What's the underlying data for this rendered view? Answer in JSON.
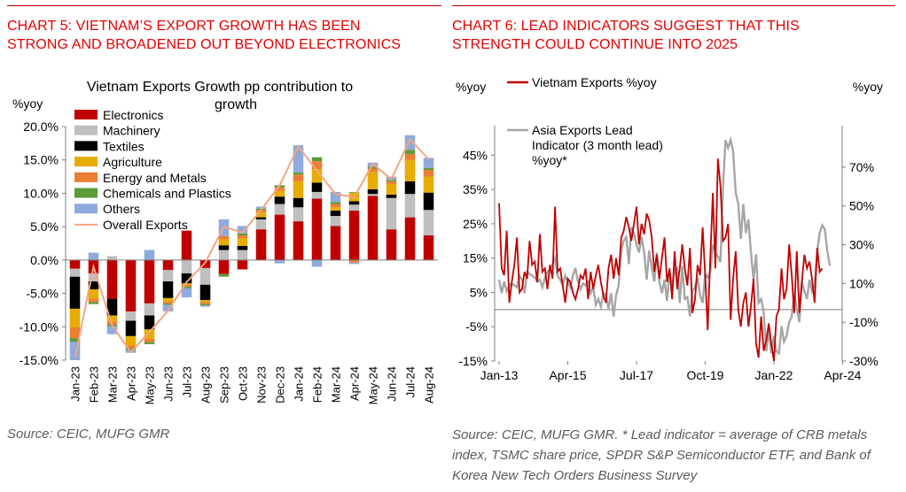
{
  "left": {
    "heading": "CHART 5: VIETNAM’S EXPORT GROWTH HAS BEEN\nSTRONG AND BROADENED OUT BEYOND ELECTRONICS",
    "source": "Source: CEIC, MUFG GMR"
  },
  "right": {
    "heading": "CHART 6: LEAD INDICATORS SUGGEST THAT THIS\nSTRENGTH COULD CONTINUE INTO 2025",
    "source": "Source: CEIC, MUFG GMR. * Lead indicator = average of CRB metals index, TSMC share price, SPDR S&P Semiconductor ETF, and Bank of Korea New Tech Orders Business Survey"
  },
  "colors": {
    "rule": "#c00000",
    "heading": "#e60000",
    "Electronics": "#c00000",
    "Machinery": "#bfbfbf",
    "Textiles": "#000000",
    "Agriculture": "#e6ac00",
    "Energy and Metals": "#ed7d31",
    "Chemicals and Plastics": "#5b9b3a",
    "Others": "#8faadc",
    "Overall Exports": "#f4a582",
    "Vietnam Exports": "#c00000",
    "Asia Lead": "#a6a6a6"
  },
  "chart_data": [
    {
      "type": "bar",
      "stacked": true,
      "title": "Vietnam Exports Growth pp contribution to growth",
      "ylabel": "%yoy",
      "ylim": [
        -15,
        20
      ],
      "yticks": [
        "-15.0%",
        "-10.0%",
        "-5.0%",
        "0.0%",
        "5.0%",
        "10.0%",
        "15.0%",
        "20.0%"
      ],
      "categories": [
        "Jan-23",
        "Feb-23",
        "Mar-23",
        "Apr-23",
        "May-23",
        "Jun-23",
        "Jul-23",
        "Aug-23",
        "Sep-23",
        "Oct-23",
        "Nov-23",
        "Dec-23",
        "Jan-24",
        "Feb-24",
        "Mar-24",
        "Apr-24",
        "May-24",
        "Jun-24",
        "Jul-24",
        "Aug-24"
      ],
      "legend_position": "top-left",
      "series": [
        {
          "name": "Electronics",
          "values": [
            -1.3,
            -2.0,
            -5.8,
            -7.7,
            -6.5,
            -1.5,
            4.4,
            -1.2,
            -2.1,
            -1.4,
            4.6,
            6.8,
            5.8,
            9.2,
            5.1,
            7.4,
            9.6,
            4.6,
            6.4,
            3.7
          ]
        },
        {
          "name": "Machinery",
          "values": [
            -1.2,
            -1.2,
            0.6,
            -1.4,
            -1.8,
            -1.7,
            -2.0,
            -2.5,
            1.5,
            1.5,
            1.5,
            1.6,
            2.1,
            1.0,
            1.5,
            0.9,
            0.3,
            4.7,
            3.5,
            3.8
          ]
        },
        {
          "name": "Textiles",
          "values": [
            -4.8,
            -1.2,
            -2.5,
            -2.3,
            -2.1,
            -2.5,
            -1.5,
            -2.3,
            0.7,
            0.6,
            0.3,
            1.1,
            1.4,
            1.4,
            0.8,
            0.5,
            0.7,
            0.5,
            1.9,
            2.6
          ]
        },
        {
          "name": "Agriculture",
          "values": [
            -2.8,
            -1.4,
            -0.9,
            -1.4,
            -1.4,
            -0.5,
            -0.2,
            -0.3,
            0.9,
            1.2,
            0.7,
            0.9,
            2.5,
            2.0,
            0.5,
            1.3,
            2.6,
            1.6,
            3.2,
            2.4
          ]
        },
        {
          "name": "Energy and Metals",
          "values": [
            -1.6,
            -0.5,
            -0.5,
            -0.4,
            -0.5,
            -0.3,
            -0.3,
            -0.3,
            0.5,
            0.4,
            0.4,
            0.5,
            1.0,
            1.2,
            0.5,
            -0.4,
            0.5,
            0.4,
            0.9,
            1.0
          ]
        },
        {
          "name": "Chemicals and Plastics",
          "values": [
            -0.6,
            -0.3,
            -0.2,
            -0.3,
            -0.3,
            -0.2,
            -0.2,
            -0.2,
            -0.4,
            0.3,
            0.2,
            0.3,
            0.3,
            0.6,
            0.3,
            0.1,
            0.3,
            0.2,
            0.6,
            0.3
          ]
        },
        {
          "name": "Others",
          "values": [
            -2.7,
            1.1,
            -1.2,
            -0.4,
            1.5,
            -1.0,
            -1.4,
            -0.2,
            2.5,
            1.1,
            0.3,
            -0.5,
            4.1,
            -1.0,
            1.5,
            -0.2,
            0.6,
            0.5,
            2.2,
            1.5
          ]
        },
        {
          "name": "Overall Exports",
          "kind": "line",
          "values": [
            -14.8,
            -1.0,
            -9.8,
            -13.8,
            -10.8,
            -7.6,
            -3.3,
            -0.4,
            5.0,
            4.1,
            7.5,
            11.2,
            17.0,
            13.4,
            9.9,
            9.4,
            14.4,
            12.1,
            18.1,
            15.1
          ]
        }
      ]
    },
    {
      "type": "line",
      "ylabel": "%yoy",
      "y2label": "%yoy",
      "ylim": [
        -15,
        50
      ],
      "y2lim": [
        -30,
        85
      ],
      "yticks": [
        "-15%",
        "-5%",
        "5%",
        "15%",
        "25%",
        "35%",
        "45%"
      ],
      "y2ticks": [
        "-30%",
        "-10%",
        "10%",
        "30%",
        "50%",
        "70%"
      ],
      "xticks": [
        "Jan-13",
        "Apr-15",
        "Jul-17",
        "Oct-19",
        "Jan-22",
        "Apr-24"
      ],
      "series": [
        {
          "name": "Vietnam Exports %yoy",
          "axis": "left",
          "start": "Jan-13",
          "values": [
            31,
            12,
            10,
            23,
            2,
            8,
            13,
            21,
            5,
            6,
            11,
            9,
            20,
            13,
            14,
            8,
            22,
            11,
            12,
            6,
            13,
            9,
            30,
            11,
            12,
            7,
            2,
            9,
            8,
            5,
            3,
            6,
            10,
            9,
            12,
            3,
            11,
            6,
            10,
            13,
            8,
            4,
            2,
            12,
            16,
            9,
            15,
            10,
            21,
            23,
            27,
            24,
            20,
            25,
            30,
            19,
            25,
            22,
            28,
            26,
            21,
            11,
            16,
            9,
            15,
            21,
            8,
            12,
            3,
            17,
            6,
            12,
            19,
            12,
            7,
            18,
            -1,
            3,
            13,
            10,
            24,
            10,
            -6,
            15,
            34,
            12,
            44,
            36,
            20,
            21,
            25,
            -3,
            9,
            17,
            0,
            -5,
            2,
            5,
            -5,
            1,
            9,
            -10,
            -14,
            -2,
            -12,
            -9,
            -4,
            -10,
            -15,
            -2,
            0,
            12,
            3,
            6,
            19,
            10,
            -1,
            17,
            -1,
            8,
            16,
            12,
            14,
            9,
            2,
            18,
            11,
            12
          ]
        },
        {
          "name": "Asia Exports Lead Indicator (3 month lead) %yoy*",
          "axis": "right",
          "start": "Jan-13",
          "values": [
            12,
            5,
            11,
            6,
            9,
            10,
            9,
            8,
            14,
            12,
            5,
            16,
            15,
            14,
            13,
            11,
            12,
            8,
            13,
            16,
            17,
            20,
            23,
            14,
            12,
            9,
            14,
            11,
            8,
            14,
            18,
            11,
            7,
            10,
            9,
            11,
            5,
            8,
            -1,
            2,
            -2,
            5,
            4,
            -3,
            5,
            -7,
            4,
            9,
            27,
            32,
            34,
            20,
            39,
            36,
            30,
            26,
            34,
            26,
            12,
            27,
            18,
            11,
            26,
            11,
            5,
            12,
            1,
            16,
            8,
            17,
            18,
            0,
            19,
            2,
            3,
            -7,
            6,
            8,
            13,
            4,
            0,
            15,
            13,
            16,
            30,
            26,
            24,
            21,
            60,
            84,
            80,
            84,
            78,
            57,
            51,
            33,
            51,
            36,
            43,
            26,
            12,
            25,
            0,
            2,
            -5,
            -25,
            -14,
            -26,
            -17,
            -25,
            -26,
            -12,
            -20,
            -17,
            -10,
            -7,
            5,
            -3,
            -10,
            11,
            6,
            2,
            12,
            6,
            9,
            26,
            36,
            40,
            38,
            27,
            19
          ]
        }
      ]
    }
  ]
}
